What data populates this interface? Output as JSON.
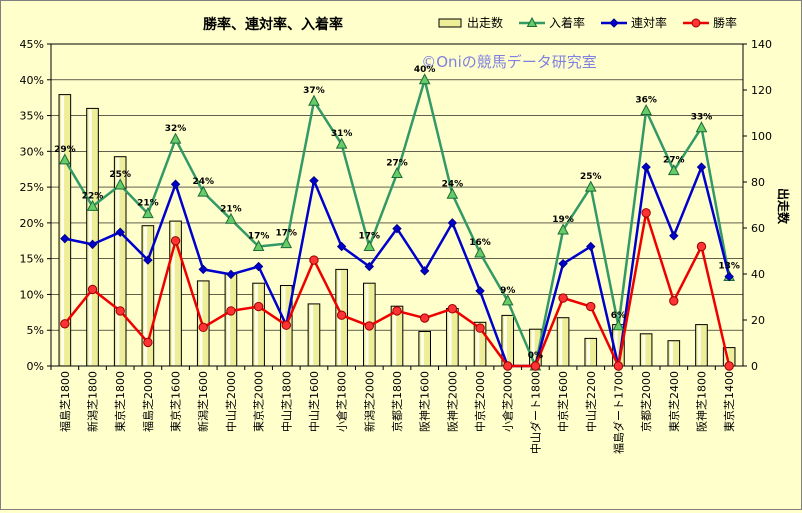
{
  "chart_data": {
    "type": "bar+line",
    "title": "勝率、連対率、入着率",
    "watermark": "©Oniの競馬データ研究室",
    "y2label": "出走数",
    "ylim": [
      0,
      45
    ],
    "y_ticks": [
      "0%",
      "5%",
      "10%",
      "15%",
      "20%",
      "25%",
      "30%",
      "35%",
      "40%",
      "45%"
    ],
    "y2lim": [
      0,
      140
    ],
    "y2_ticks": [
      "0",
      "20",
      "40",
      "60",
      "80",
      "100",
      "120",
      "140"
    ],
    "categories": [
      "福島芝1800",
      "新潟芝1800",
      "東京芝1800",
      "福島芝2000",
      "東京芝1600",
      "新潟芝1600",
      "中山芝2000",
      "東京芝2000",
      "中山芝1800",
      "中山芝1600",
      "小倉芝1800",
      "新潟芝2000",
      "京都芝1800",
      "阪神芝1600",
      "阪神芝2000",
      "中京芝2000",
      "小倉芝2000",
      "中山ダート1800",
      "中京芝1600",
      "中山芝2200",
      "福島ダート1700",
      "京都芝2000",
      "東京芝2400",
      "阪神芝1800",
      "東京芝1400"
    ],
    "legend": [
      {
        "name": "出走数",
        "color": "#eeee99"
      },
      {
        "name": "入着率",
        "color": "#339966"
      },
      {
        "name": "連対率",
        "color": "#0000cc"
      },
      {
        "name": "勝率",
        "color": "#ee0000"
      }
    ],
    "bars": {
      "name": "出走数",
      "axis": "right",
      "color": "#eeee99",
      "values": [
        118,
        112,
        91,
        61,
        63,
        37,
        40,
        36,
        35,
        27,
        42,
        36,
        26,
        15,
        25,
        19,
        22,
        16,
        21,
        12,
        18,
        14,
        11,
        18,
        8
      ]
    },
    "series": [
      {
        "name": "入着率",
        "color": "#339966",
        "marker": "triangle",
        "values": [
          28.8,
          22.3,
          25.3,
          21.3,
          31.7,
          24.3,
          20.5,
          16.7,
          17.1,
          37.0,
          31.0,
          16.7,
          26.9,
          40.0,
          24.0,
          15.8,
          9.1,
          0,
          19.0,
          25.0,
          5.6,
          35.7,
          27.3,
          33.3,
          12.5
        ]
      },
      {
        "name": "連対率",
        "color": "#0000cc",
        "marker": "diamond",
        "values": [
          17.8,
          17.0,
          18.7,
          14.8,
          25.4,
          13.5,
          12.8,
          13.9,
          5.7,
          25.9,
          16.7,
          13.9,
          19.2,
          13.3,
          20.0,
          10.5,
          0,
          0,
          14.3,
          16.7,
          0,
          27.8,
          18.2,
          27.8,
          12.5
        ]
      },
      {
        "name": "勝率",
        "color": "#ee0000",
        "marker": "circle",
        "values": [
          5.9,
          10.7,
          7.7,
          3.3,
          17.5,
          5.4,
          7.7,
          8.3,
          5.7,
          14.8,
          7.1,
          5.6,
          7.7,
          6.7,
          8.0,
          5.3,
          0,
          0,
          9.5,
          8.3,
          0,
          21.4,
          9.1,
          16.7,
          0
        ]
      }
    ],
    "data_labels": {
      "series": "入着率",
      "texts": [
        "29%",
        "22%",
        "25%",
        "21%",
        "32%",
        "24%",
        "21%",
        "17%",
        "17%",
        "37%",
        "31%",
        "17%",
        "27%",
        "40%",
        "24%",
        "16%",
        "9%",
        "0%",
        "19%",
        "25%",
        "6%",
        "36%",
        "27%",
        "33%",
        "13%"
      ]
    }
  }
}
